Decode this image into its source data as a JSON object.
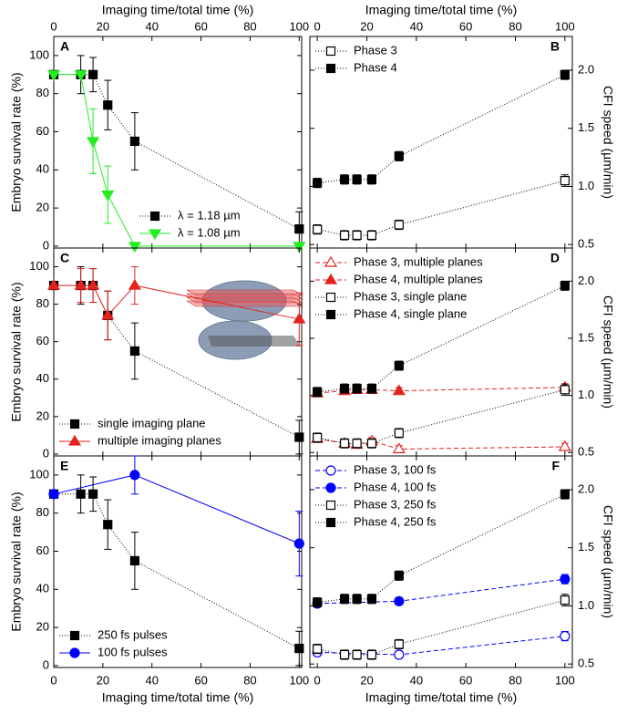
{
  "chart_data": [
    {
      "type": "scatter",
      "panel_label": "A",
      "xlabel": "Imaging time/total time (%)",
      "xaxis_labels": "top",
      "ylabel": "Embryo survival rate (%)",
      "xlim": [
        0,
        101
      ],
      "xticks": [
        0,
        20,
        40,
        60,
        80,
        100
      ],
      "ylim": [
        -1,
        110
      ],
      "yticks": [
        0,
        20,
        40,
        60,
        80,
        100
      ],
      "legend": "lower right",
      "series": [
        {
          "name": "λ = 1.18 µm",
          "color": "#000000",
          "marker": "square",
          "filled": true,
          "line": "dotted",
          "x": [
            0,
            11,
            16,
            22,
            33,
            100
          ],
          "values": [
            90,
            90,
            90,
            74,
            55,
            9
          ],
          "errors": [
            0,
            10,
            9,
            13,
            15,
            9
          ]
        },
        {
          "name": "λ = 1.08 µm",
          "color": "#22ee22",
          "marker": "triangle-down",
          "filled": true,
          "line": "solid",
          "x": [
            0,
            11,
            16,
            22,
            33,
            100
          ],
          "values": [
            90,
            90,
            55,
            27,
            0,
            0
          ],
          "errors": [
            0,
            0,
            17,
            15,
            0,
            0
          ]
        }
      ]
    },
    {
      "type": "scatter",
      "panel_label": "B",
      "xlabel": "Imaging time/total time (%)",
      "xaxis_labels": "top",
      "ylabel": "CFI speed (µm/min)",
      "xlim": [
        -3,
        103
      ],
      "xticks": [
        0,
        20,
        40,
        60,
        80,
        100
      ],
      "ylim": [
        0.47,
        2.29
      ],
      "yticks": [
        {
          "value": 0.5,
          "label": "0.5"
        },
        {
          "value": 1.0,
          "label": "1.0"
        },
        {
          "value": 1.5,
          "label": "1.5"
        },
        {
          "value": 2.0,
          "label": "2.0"
        }
      ],
      "legend": "upper left",
      "series": [
        {
          "name": "Phase 3",
          "color": "#000000",
          "marker": "square",
          "filled": false,
          "line": "dotted",
          "x": [
            0,
            11,
            16,
            22,
            33,
            100
          ],
          "values": [
            0.63,
            0.58,
            0.58,
            0.58,
            0.67,
            1.05
          ],
          "errors": [
            0.04,
            0.04,
            0.04,
            0.04,
            0.04,
            0.05
          ]
        },
        {
          "name": "Phase 4",
          "color": "#000000",
          "marker": "square",
          "filled": true,
          "line": "dotted",
          "x": [
            0,
            11,
            16,
            22,
            33,
            100
          ],
          "values": [
            1.03,
            1.06,
            1.06,
            1.06,
            1.26,
            1.96
          ],
          "errors": [
            0.04,
            0.04,
            0.04,
            0.04,
            0.04,
            0.04
          ]
        }
      ]
    },
    {
      "type": "scatter",
      "panel_label": "C",
      "ylabel": "Embryo survival rate (%)",
      "xlim": [
        0,
        101
      ],
      "xticks": [
        0,
        20,
        40,
        60,
        80,
        100
      ],
      "ylim": [
        -1,
        110
      ],
      "yticks": [
        0,
        20,
        40,
        60,
        80,
        100
      ],
      "legend": "lower left",
      "series": [
        {
          "name": "single imaging plane",
          "color": "#000000",
          "marker": "square",
          "filled": true,
          "line": "dotted",
          "x": [
            0,
            11,
            16,
            22,
            33,
            100
          ],
          "values": [
            90,
            90,
            90,
            74,
            55,
            9
          ],
          "errors": [
            0,
            10,
            9,
            13,
            15,
            9
          ]
        },
        {
          "name": "multiple imaging planes",
          "color": "#e3231f",
          "marker": "triangle",
          "filled": true,
          "line": "solid",
          "x": [
            0,
            11,
            16,
            22,
            33,
            100
          ],
          "values": [
            90,
            90,
            90,
            74,
            90,
            72
          ],
          "errors": [
            0,
            9,
            9,
            13,
            10,
            14
          ]
        }
      ]
    },
    {
      "type": "scatter",
      "panel_label": "D",
      "ylabel": "CFI speed (µm/min)",
      "xlim": [
        -3,
        103
      ],
      "xticks": [
        0,
        20,
        40,
        60,
        80,
        100
      ],
      "ylim": [
        0.47,
        2.29
      ],
      "yticks": [
        {
          "value": 0.5,
          "label": "0.5"
        },
        {
          "value": 1.0,
          "label": "1.0"
        },
        {
          "value": 1.5,
          "label": "1.5"
        },
        {
          "value": 2.0,
          "label": "2.0"
        }
      ],
      "legend": "upper left",
      "series": [
        {
          "name": "Phase 3, multiple planes",
          "color": "#e3231f",
          "marker": "triangle",
          "filled": false,
          "line": "dashed",
          "x": [
            0,
            11,
            16,
            22,
            33,
            100
          ],
          "values": [
            0.62,
            0.58,
            0.57,
            0.6,
            0.53,
            0.55
          ],
          "errors": [
            0.03,
            0.03,
            0.03,
            0.03,
            0.03,
            0.03
          ]
        },
        {
          "name": "Phase 4, multiple planes",
          "color": "#e3231f",
          "marker": "triangle",
          "filled": true,
          "line": "dashed",
          "x": [
            0,
            11,
            16,
            22,
            33,
            100
          ],
          "values": [
            1.02,
            1.04,
            1.05,
            1.05,
            1.04,
            1.07
          ],
          "errors": [
            0.03,
            0.03,
            0.03,
            0.03,
            0.03,
            0.03
          ]
        },
        {
          "name": "Phase 3, single plane",
          "color": "#000000",
          "marker": "square",
          "filled": false,
          "line": "dotted",
          "x": [
            0,
            11,
            16,
            22,
            33,
            100
          ],
          "values": [
            0.63,
            0.58,
            0.58,
            0.58,
            0.67,
            1.05
          ],
          "errors": [
            0.04,
            0.04,
            0.04,
            0.04,
            0.04,
            0.05
          ]
        },
        {
          "name": "Phase 4, single plane",
          "color": "#000000",
          "marker": "square",
          "filled": true,
          "line": "dotted",
          "x": [
            0,
            11,
            16,
            22,
            33,
            100
          ],
          "values": [
            1.03,
            1.06,
            1.06,
            1.06,
            1.26,
            1.96
          ],
          "errors": [
            0.04,
            0.04,
            0.04,
            0.04,
            0.04,
            0.04
          ]
        }
      ]
    },
    {
      "type": "scatter",
      "panel_label": "E",
      "xlabel": "Imaging time/total time (%)",
      "xaxis_labels": "bottom",
      "ylabel": "Embryo survival rate (%)",
      "xlim": [
        0,
        101
      ],
      "xticks": [
        0,
        20,
        40,
        60,
        80,
        100
      ],
      "ylim": [
        -1,
        110
      ],
      "yticks": [
        0,
        20,
        40,
        60,
        80,
        100
      ],
      "legend": "lower left",
      "series": [
        {
          "name": "250 fs pulses",
          "color": "#000000",
          "marker": "square",
          "filled": true,
          "line": "dotted",
          "x": [
            0,
            11,
            16,
            22,
            33,
            100
          ],
          "values": [
            90,
            90,
            90,
            74,
            55,
            9
          ],
          "errors": [
            0,
            10,
            9,
            13,
            15,
            9
          ]
        },
        {
          "name": "100 fs pulses",
          "color": "#0000ff",
          "marker": "circle",
          "filled": true,
          "line": "solid",
          "x": [
            0,
            33,
            100
          ],
          "values": [
            90,
            100,
            64
          ],
          "errors": [
            0,
            10,
            17
          ]
        }
      ]
    },
    {
      "type": "scatter",
      "panel_label": "F",
      "xlabel": "Imaging time/total time (%)",
      "xaxis_labels": "bottom",
      "ylabel": "CFI speed (µm/min)",
      "xlim": [
        -3,
        103
      ],
      "xticks": [
        0,
        20,
        40,
        60,
        80,
        100
      ],
      "ylim": [
        0.47,
        2.29
      ],
      "yticks": [
        {
          "value": 0.5,
          "label": "0.5"
        },
        {
          "value": 1.0,
          "label": "1.0"
        },
        {
          "value": 1.5,
          "label": "1.5"
        },
        {
          "value": 2.0,
          "label": "2.0"
        }
      ],
      "legend": "upper left",
      "series": [
        {
          "name": "Phase 3, 100 fs",
          "color": "#0000ff",
          "marker": "circle",
          "filled": false,
          "line": "dashed",
          "x": [
            0,
            33,
            100
          ],
          "values": [
            0.6,
            0.58,
            0.74
          ],
          "errors": [
            0.03,
            0.03,
            0.04
          ]
        },
        {
          "name": "Phase 4, 100 fs",
          "color": "#0000ff",
          "marker": "circle",
          "filled": true,
          "line": "dashed",
          "x": [
            0,
            33,
            100
          ],
          "values": [
            1.02,
            1.04,
            1.23
          ],
          "errors": [
            0.03,
            0.03,
            0.04
          ]
        },
        {
          "name": "Phase 3, 250 fs",
          "color": "#000000",
          "marker": "square",
          "filled": false,
          "line": "dotted",
          "x": [
            0,
            11,
            16,
            22,
            33,
            100
          ],
          "values": [
            0.63,
            0.58,
            0.58,
            0.58,
            0.67,
            1.05
          ],
          "errors": [
            0.04,
            0.04,
            0.04,
            0.04,
            0.04,
            0.05
          ]
        },
        {
          "name": "Phase 4, 250 fs",
          "color": "#000000",
          "marker": "square",
          "filled": true,
          "line": "dotted",
          "x": [
            0,
            11,
            16,
            22,
            33,
            100
          ],
          "values": [
            1.03,
            1.06,
            1.06,
            1.06,
            1.26,
            1.96
          ],
          "errors": [
            0.04,
            0.04,
            0.04,
            0.04,
            0.04,
            0.04
          ]
        }
      ]
    }
  ]
}
